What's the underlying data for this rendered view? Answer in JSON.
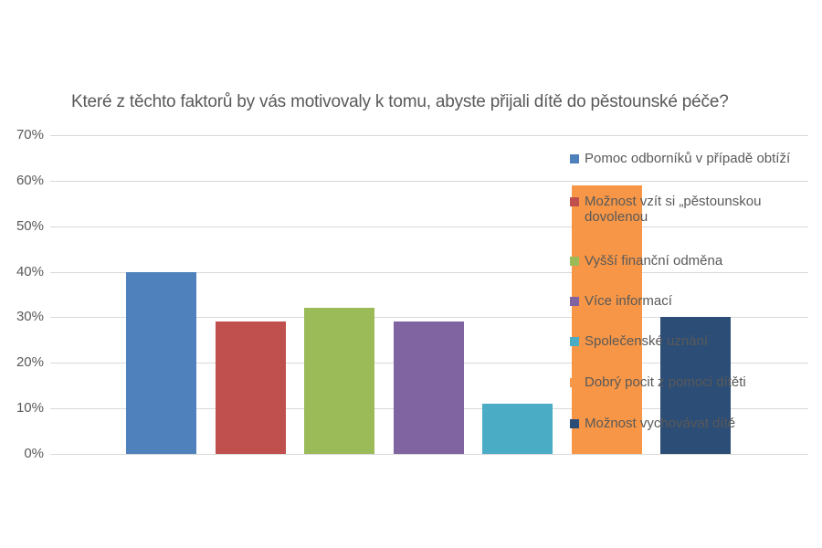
{
  "chart_data": {
    "type": "bar",
    "title": "Které z těchto faktorů by vás motivovaly k tomu, abyste přijali dítě do pěstounské péče?",
    "xlabel": "",
    "ylabel": "",
    "ylim": [
      0,
      0.7
    ],
    "y_ticks": [
      "0%",
      "10%",
      "20%",
      "30%",
      "40%",
      "50%",
      "60%",
      "70%"
    ],
    "grid": true,
    "legend_position": "right (overlapping plot)",
    "categories": [
      "Pomoc odborníků v případě obtíží",
      "Možnost vzít si „pěstounskou dovolenou",
      "Vyšší finanční odměna",
      "Více informací",
      "Společenské uznání",
      "Dobrý pocit z pomoci dítěti",
      "Možnost vychovávat dítě"
    ],
    "series": [
      {
        "name": "Pomoc odborníků v případě obtíží",
        "values": [
          0.4
        ],
        "color": "#4f81bd"
      },
      {
        "name": "Možnost vzít si „pěstounskou dovolenou",
        "values": [
          0.29
        ],
        "color": "#c0504d"
      },
      {
        "name": "Vyšší finanční odměna",
        "values": [
          0.32
        ],
        "color": "#9bbb59"
      },
      {
        "name": "Více informací",
        "values": [
          0.29
        ],
        "color": "#8064a2"
      },
      {
        "name": "Společenské uznání",
        "values": [
          0.11
        ],
        "color": "#4bacc6"
      },
      {
        "name": "Dobrý pocit z pomoci dítěti",
        "values": [
          0.59
        ],
        "color": "#f79646"
      },
      {
        "name": "Možnost vychovávat dítě",
        "values": [
          0.3
        ],
        "color": "#2c4d75"
      }
    ],
    "values": [
      0.4,
      0.29,
      0.32,
      0.29,
      0.11,
      0.59,
      0.3
    ]
  },
  "title": "Které z těchto faktorů by vás motivovaly k tomu, abyste přijali dítě do pěstounské péče?",
  "y_axis": [
    "0%",
    "10%",
    "20%",
    "30%",
    "40%",
    "50%",
    "60%",
    "70%"
  ],
  "legend": [
    {
      "label": "Pomoc odborníků v případě obtíží",
      "color": "#4f81bd"
    },
    {
      "label": "Možnost vzít si „pěstounskou dovolenou",
      "color": "#c0504d"
    },
    {
      "label": "Vyšší finanční odměna",
      "color": "#9bbb59"
    },
    {
      "label": "Více informací",
      "color": "#8064a2"
    },
    {
      "label": "Společenské uznání",
      "color": "#4bacc6"
    },
    {
      "label": "Dobrý pocit z pomoci dítěti",
      "color": "#f79646"
    },
    {
      "label": "Možnost vychovávat dítě",
      "color": "#2c4d75"
    }
  ]
}
